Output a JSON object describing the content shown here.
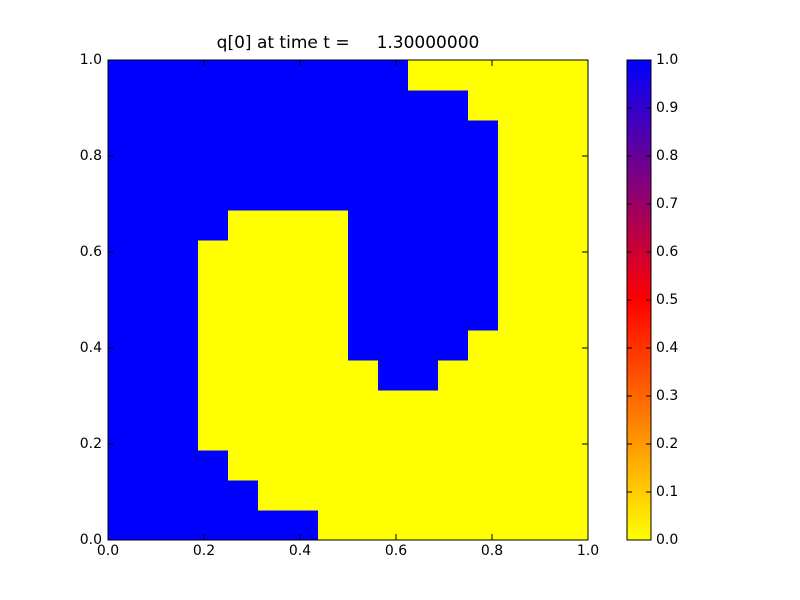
{
  "chart_data": {
    "type": "heatmap",
    "title": "q[0] at time t =     1.30000000",
    "xlim": [
      0,
      1
    ],
    "ylim": [
      0,
      1
    ],
    "xticks": [
      {
        "value": 0,
        "label": "0.0"
      },
      {
        "value": 0.2,
        "label": "0.2"
      },
      {
        "value": 0.4,
        "label": "0.4"
      },
      {
        "value": 0.6,
        "label": "0.6"
      },
      {
        "value": 0.8,
        "label": "0.8"
      },
      {
        "value": 1,
        "label": "1.0"
      }
    ],
    "yticks": [
      {
        "value": 0,
        "label": "0.0"
      },
      {
        "value": 0.2,
        "label": "0.2"
      },
      {
        "value": 0.4,
        "label": "0.4"
      },
      {
        "value": 0.6,
        "label": "0.6"
      },
      {
        "value": 0.8,
        "label": "0.8"
      },
      {
        "value": 1,
        "label": "1.0"
      }
    ],
    "colormap": [
      "#ffff00",
      "#ff0000",
      "#0000ff"
    ],
    "clim": [
      0,
      1
    ],
    "cticks": [
      {
        "value": 0,
        "label": "0.0"
      },
      {
        "value": 0.1,
        "label": "0.1"
      },
      {
        "value": 0.2,
        "label": "0.2"
      },
      {
        "value": 0.3,
        "label": "0.3"
      },
      {
        "value": 0.4,
        "label": "0.4"
      },
      {
        "value": 0.5,
        "label": "0.5"
      },
      {
        "value": 0.6,
        "label": "0.6"
      },
      {
        "value": 0.7,
        "label": "0.7"
      },
      {
        "value": 0.8,
        "label": "0.8"
      },
      {
        "value": 0.9,
        "label": "0.9"
      },
      {
        "value": 1,
        "label": "1.0"
      }
    ],
    "z": [
      [
        1,
        1,
        1,
        1,
        1,
        1,
        1,
        0,
        0,
        0,
        0,
        0,
        0,
        0,
        0,
        0
      ],
      [
        1,
        1,
        1,
        1,
        1,
        0,
        0,
        0,
        0,
        0,
        0,
        0,
        0,
        0,
        0,
        0
      ],
      [
        1,
        1,
        1,
        1,
        0,
        0,
        0,
        0,
        0,
        0,
        0,
        0,
        0,
        0,
        0,
        0
      ],
      [
        1,
        1,
        1,
        0,
        0,
        0,
        0,
        0,
        0,
        0,
        0,
        0,
        0,
        0,
        0,
        0
      ],
      [
        1,
        1,
        1,
        0,
        0,
        0,
        0,
        0,
        0,
        0,
        0,
        0,
        0,
        0,
        0,
        0
      ],
      [
        1,
        1,
        1,
        0,
        0,
        0,
        0,
        0,
        0,
        1,
        1,
        0,
        0,
        0,
        0,
        0
      ],
      [
        1,
        1,
        1,
        0,
        0,
        0,
        0,
        0,
        1,
        1,
        1,
        1,
        0,
        0,
        0,
        0
      ],
      [
        1,
        1,
        1,
        0,
        0,
        0,
        0,
        0,
        1,
        1,
        1,
        1,
        1,
        0,
        0,
        0
      ],
      [
        1,
        1,
        1,
        0,
        0,
        0,
        0,
        0,
        1,
        1,
        1,
        1,
        1,
        0,
        0,
        0
      ],
      [
        1,
        1,
        1,
        0,
        0,
        0,
        0,
        0,
        1,
        1,
        1,
        1,
        1,
        0,
        0,
        0
      ],
      [
        1,
        1,
        1,
        1,
        0,
        0,
        0,
        0,
        1,
        1,
        1,
        1,
        1,
        0,
        0,
        0
      ],
      [
        1,
        1,
        1,
        1,
        1,
        1,
        1,
        1,
        1,
        1,
        1,
        1,
        1,
        0,
        0,
        0
      ],
      [
        1,
        1,
        1,
        1,
        1,
        1,
        1,
        1,
        1,
        1,
        1,
        1,
        1,
        0,
        0,
        0
      ],
      [
        1,
        1,
        1,
        1,
        1,
        1,
        1,
        1,
        1,
        1,
        1,
        1,
        1,
        0,
        0,
        0
      ],
      [
        1,
        1,
        1,
        1,
        1,
        1,
        1,
        1,
        1,
        1,
        1,
        1,
        0,
        0,
        0,
        0
      ],
      [
        1,
        1,
        1,
        1,
        1,
        1,
        1,
        1,
        1,
        1,
        0,
        0,
        0,
        0,
        0,
        0
      ]
    ]
  }
}
